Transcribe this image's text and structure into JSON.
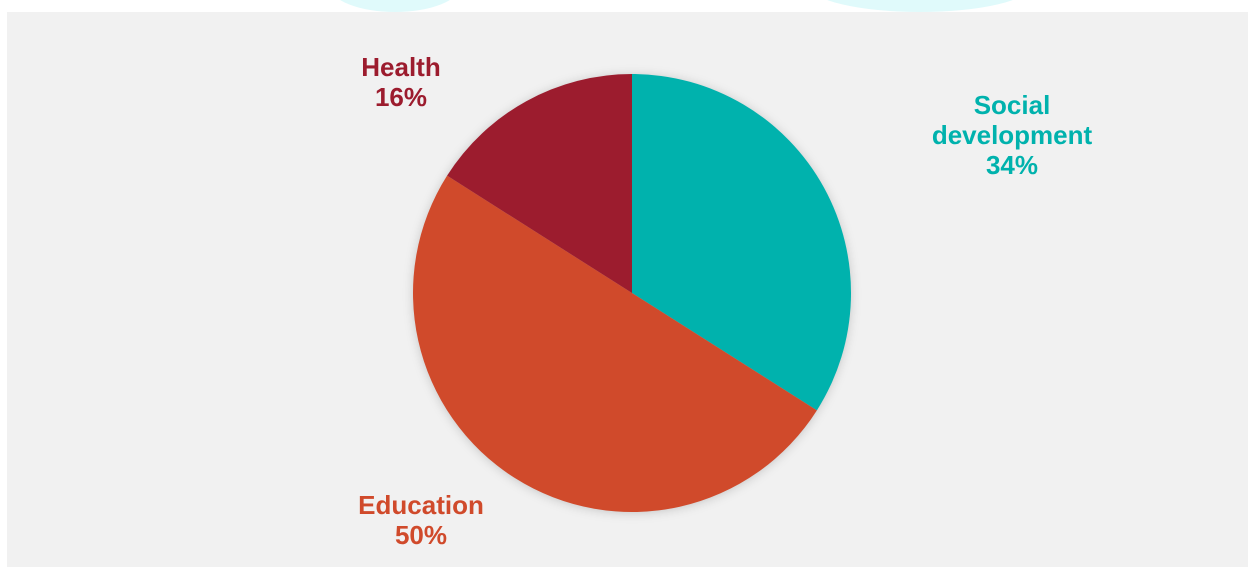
{
  "chart_data": {
    "type": "pie",
    "title": "",
    "start_angle_deg": 0,
    "direction": "clockwise",
    "slices": [
      {
        "label": "Social development",
        "label_lines": [
          "Social",
          "development"
        ],
        "value": 34,
        "value_label": "34%",
        "color": "#00b2ad"
      },
      {
        "label": "Education",
        "label_lines": [
          "Education"
        ],
        "value": 50,
        "value_label": "50%",
        "color": "#d04a2b"
      },
      {
        "label": "Health",
        "label_lines": [
          "Health"
        ],
        "value": 16,
        "value_label": "16%",
        "color": "#9c1c2e"
      }
    ]
  }
}
